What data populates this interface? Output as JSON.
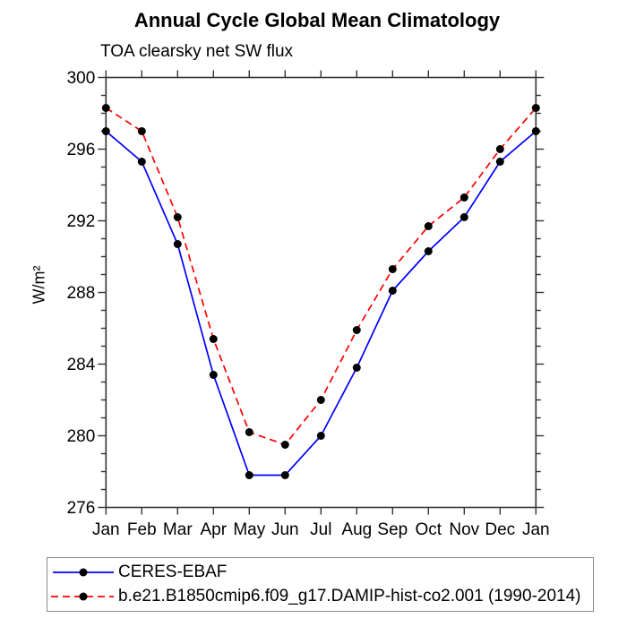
{
  "header": {
    "title": "Annual Cycle Global Mean Climatology",
    "subtitle": "TOA clearsky net SW flux"
  },
  "chart_data": {
    "type": "line",
    "title": "Annual Cycle Global Mean Climatology",
    "subtitle": "TOA clearsky net SW flux",
    "xlabel": "",
    "ylabel": "W/m²",
    "x_tick_labels": [
      "Jan",
      "Feb",
      "Mar",
      "Apr",
      "May",
      "Jun",
      "Jul",
      "Aug",
      "Sep",
      "Oct",
      "Nov",
      "Dec",
      "Jan"
    ],
    "ylim": [
      276,
      300
    ],
    "ytick_major_step": 4,
    "ytick_minor_step": 1,
    "ytick_labels": [
      "276",
      "280",
      "284",
      "288",
      "292",
      "296",
      "300"
    ],
    "grid": false,
    "legend_position": "bottom-left-box",
    "marker_color": "#000000",
    "axis_color": "#333333",
    "series": [
      {
        "name": "CERES-EBAF",
        "color": "#0000ff",
        "style": "solid",
        "marker": "filled-circle",
        "values": [
          297.0,
          295.3,
          290.7,
          283.4,
          277.8,
          277.8,
          280.0,
          283.8,
          288.1,
          290.3,
          292.2,
          295.3,
          297.0
        ]
      },
      {
        "name": "b.e21.B1850cmip6.f09_g17.DAMIP-hist-co2.001 (1990-2014)",
        "color": "#ff0000",
        "style": "dashed",
        "marker": "filled-circle",
        "values": [
          298.3,
          297.0,
          292.2,
          285.4,
          280.2,
          279.5,
          282.0,
          285.9,
          289.3,
          291.7,
          293.3,
          296.0,
          298.3
        ]
      }
    ]
  }
}
